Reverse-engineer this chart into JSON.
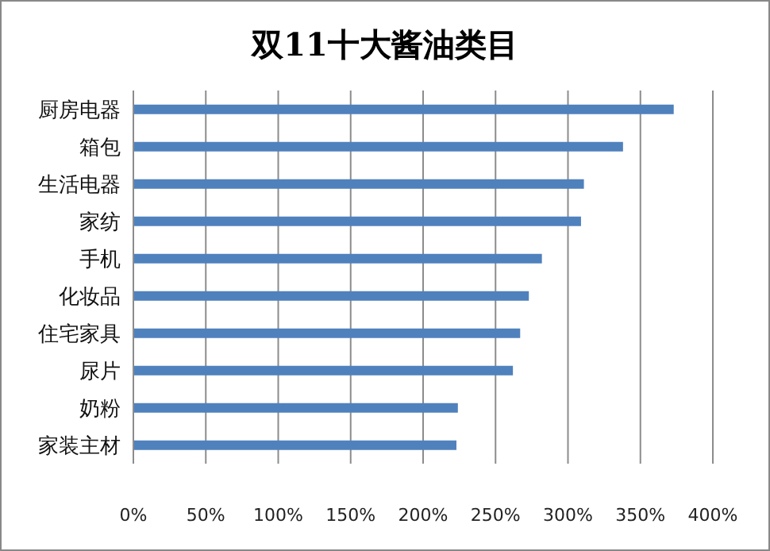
{
  "chart_data": {
    "type": "bar",
    "orientation": "horizontal",
    "title": "双11十大酱油类目",
    "categories": [
      "厨房电器",
      "箱包",
      "生活电器",
      "家纺",
      "手机",
      "化妆品",
      "住宅家具",
      "尿片",
      "奶粉",
      "家装主材"
    ],
    "values": [
      373,
      338,
      311,
      309,
      282,
      273,
      267,
      262,
      224,
      223
    ],
    "color": "#4f81bd",
    "xlim": [
      0,
      400
    ],
    "xticks": [
      {
        "value": 0,
        "label": "0%"
      },
      {
        "value": 50,
        "label": "50%"
      },
      {
        "value": 100,
        "label": "100%"
      },
      {
        "value": 150,
        "label": "150%"
      },
      {
        "value": 200,
        "label": "200%"
      },
      {
        "value": 250,
        "label": "250%"
      },
      {
        "value": 300,
        "label": "300%"
      },
      {
        "value": 350,
        "label": "350%"
      },
      {
        "value": 400,
        "label": "400%"
      }
    ],
    "grid": "x"
  }
}
